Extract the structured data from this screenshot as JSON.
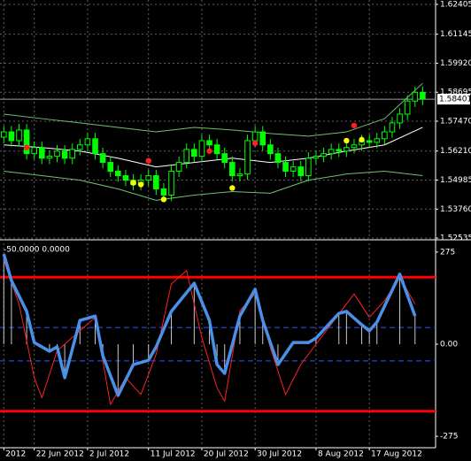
{
  "chart_data": [
    {
      "type": "candlestick",
      "color": "#00ff00",
      "up_fill": "#000000",
      "down_fill": "#00ff00",
      "grid": true,
      "xlim": [
        -0.5,
        56.7
      ],
      "ylim": [
        1.525,
        1.6259
      ],
      "yticks": [
        1.62405,
        1.61145,
        {
          "value": 1.5992,
          "label": "1.59920"
        },
        1.58695,
        {
          "value": 1.5747,
          "label": "1.57470"
        },
        {
          "value": 1.5621,
          "label": "1.56210"
        },
        1.54985,
        {
          "value": 1.5376,
          "label": "1.53760"
        },
        1.52535
      ],
      "xticks": [
        {
          "value": 0,
          "label": "2012"
        },
        {
          "value": 4,
          "label": "22 Jun 2012"
        },
        {
          "value": 11,
          "label": "2 Jul 2012"
        },
        {
          "value": 19,
          "label": "11 Jul 2012"
        },
        {
          "value": 26,
          "label": "20 Jul 2012"
        },
        {
          "value": 33,
          "label": "30 Jul 2012"
        },
        {
          "value": 41,
          "label": "8 Aug 2012"
        },
        {
          "value": 48,
          "label": "17 Aug 2012"
        }
      ],
      "last_price": 1.58401,
      "open": [
        1.568,
        1.5702,
        1.5665,
        1.571,
        1.561,
        1.5636,
        1.5591,
        1.5599,
        1.5621,
        1.5591,
        1.5628,
        1.5647,
        1.5673,
        1.561,
        1.5573,
        1.5536,
        1.5517,
        1.5498,
        1.548,
        1.5498,
        1.5517,
        1.5461,
        1.5435,
        1.5536,
        1.5573,
        1.5628,
        1.5599,
        1.5665,
        1.5647,
        1.561,
        1.5573,
        1.5517,
        1.5524,
        1.5665,
        1.5702,
        1.5647,
        1.561,
        1.5573,
        1.5536,
        1.5554,
        1.5517,
        1.5591,
        1.5599,
        1.561,
        1.5628,
        1.5621,
        1.5636,
        1.5647,
        1.5665,
        1.5658,
        1.5673,
        1.5702,
        1.574,
        1.5777,
        1.5832,
        1.5869
      ],
      "high": [
        1.5727,
        1.5727,
        1.5735,
        1.5735,
        1.5661,
        1.5661,
        1.5624,
        1.5646,
        1.5646,
        1.5653,
        1.5672,
        1.5698,
        1.5698,
        1.5635,
        1.5598,
        1.5561,
        1.5542,
        1.5523,
        1.5523,
        1.5542,
        1.5542,
        1.5486,
        1.5561,
        1.5598,
        1.5653,
        1.5653,
        1.569,
        1.569,
        1.5672,
        1.5635,
        1.5598,
        1.5549,
        1.569,
        1.5727,
        1.5727,
        1.5672,
        1.5635,
        1.5598,
        1.5579,
        1.5579,
        1.5616,
        1.5624,
        1.5635,
        1.5653,
        1.5653,
        1.5661,
        1.5672,
        1.569,
        1.569,
        1.5698,
        1.5727,
        1.5765,
        1.5802,
        1.5857,
        1.5894,
        1.5894
      ],
      "low": [
        1.5655,
        1.564,
        1.564,
        1.5585,
        1.5585,
        1.5566,
        1.5566,
        1.5574,
        1.5566,
        1.5566,
        1.5603,
        1.5622,
        1.5585,
        1.5548,
        1.5511,
        1.5492,
        1.5473,
        1.5455,
        1.5455,
        1.5473,
        1.5436,
        1.541,
        1.541,
        1.5511,
        1.5548,
        1.5574,
        1.5574,
        1.5622,
        1.5585,
        1.5548,
        1.5492,
        1.5492,
        1.5499,
        1.564,
        1.5622,
        1.5585,
        1.5548,
        1.5511,
        1.5511,
        1.5492,
        1.5492,
        1.5566,
        1.5574,
        1.5585,
        1.5596,
        1.5596,
        1.5611,
        1.5622,
        1.5633,
        1.5633,
        1.5648,
        1.5677,
        1.5715,
        1.5752,
        1.5807,
        1.5815
      ],
      "close": [
        1.5702,
        1.5665,
        1.571,
        1.561,
        1.5636,
        1.5591,
        1.5599,
        1.5621,
        1.5591,
        1.5628,
        1.5647,
        1.5673,
        1.561,
        1.5573,
        1.5536,
        1.5517,
        1.5498,
        1.548,
        1.5498,
        1.5517,
        1.5461,
        1.5435,
        1.5536,
        1.5573,
        1.5628,
        1.5599,
        1.5665,
        1.5647,
        1.561,
        1.5573,
        1.5517,
        1.5524,
        1.5665,
        1.5702,
        1.5647,
        1.561,
        1.5573,
        1.5536,
        1.5554,
        1.5517,
        1.5591,
        1.5599,
        1.561,
        1.5628,
        1.5621,
        1.5636,
        1.5647,
        1.5665,
        1.5658,
        1.5673,
        1.5702,
        1.574,
        1.5777,
        1.5832,
        1.5869,
        1.584
      ],
      "lines": [
        {
          "color": "#6fc06f",
          "x": [
            0,
            5,
            10,
            15,
            20,
            25,
            30,
            35,
            40,
            45,
            50,
            55
          ],
          "values": [
            1.5777,
            1.5758,
            1.574,
            1.5721,
            1.5702,
            1.5721,
            1.571,
            1.5695,
            1.5684,
            1.5702,
            1.5758,
            1.5907
          ]
        },
        {
          "color": "#6fc06f",
          "x": [
            0,
            5,
            10,
            15,
            20,
            25,
            30,
            35,
            40,
            45,
            50,
            55
          ],
          "values": [
            1.5536,
            1.5517,
            1.5498,
            1.5461,
            1.5413,
            1.5435,
            1.545,
            1.5443,
            1.5498,
            1.5524,
            1.5536,
            1.5517
          ]
        },
        {
          "color": "#ffffff",
          "x": [
            0,
            5,
            10,
            15,
            20,
            25,
            30,
            35,
            40,
            45,
            50,
            55
          ],
          "values": [
            1.5647,
            1.5636,
            1.5621,
            1.5591,
            1.5554,
            1.5573,
            1.5591,
            1.5573,
            1.5591,
            1.5621,
            1.5647,
            1.5721
          ]
        }
      ],
      "markers": [
        {
          "color": "#ff2020",
          "x": [
            3,
            19,
            27,
            33,
            46
          ],
          "values": [
            1.5636,
            1.558,
            1.5621,
            1.5654,
            1.5729
          ]
        },
        {
          "color": "#ffff00",
          "x": [
            17,
            18,
            21,
            30,
            45,
            47
          ],
          "values": [
            1.5487,
            1.548,
            1.5417,
            1.5465,
            1.5665,
            1.5669
          ]
        }
      ]
    },
    {
      "type": "line",
      "header": "-50.0000 0.0000",
      "xlim": [
        -0.5,
        56.7
      ],
      "ylim": [
        -309,
        309
      ],
      "yticks": [
        275,
        {
          "value": 0,
          "label": "0.00"
        },
        -275
      ],
      "levels": [
        {
          "value": 200,
          "color": "#ff0000"
        },
        {
          "value": -200,
          "color": "#ff0000"
        },
        {
          "value": 50,
          "color": "#3050ff"
        },
        {
          "value": -50,
          "color": "#3050ff"
        }
      ],
      "series": [
        {
          "color": "#ff2020",
          "width": 1,
          "x": [
            0,
            2,
            4,
            5,
            7,
            9,
            12,
            14,
            16,
            18,
            20,
            22,
            24,
            26,
            28,
            29,
            31,
            33,
            35,
            37,
            39,
            41,
            43,
            46,
            48,
            50,
            52,
            54
          ],
          "values": [
            250,
            120,
            -100,
            -160,
            -20,
            20,
            80,
            -180,
            -100,
            -150,
            -30,
            180,
            220,
            20,
            -130,
            -170,
            100,
            150,
            -10,
            -150,
            -60,
            0,
            60,
            150,
            80,
            130,
            200,
            120
          ]
        },
        {
          "color": "#4a90e8",
          "width": 3.5,
          "stems": true,
          "x": [
            0,
            1,
            3,
            4,
            6,
            7,
            8,
            10,
            12,
            13,
            15,
            17,
            19,
            20,
            22,
            25,
            27,
            28,
            29,
            31,
            33,
            34,
            36,
            38,
            40,
            41,
            44,
            45,
            47,
            48,
            49,
            52,
            54
          ],
          "values": [
            269,
            190,
            98,
            5,
            -21,
            -8,
            -100,
            71,
            84,
            -34,
            -153,
            -61,
            -48,
            -8,
            98,
            182,
            71,
            -61,
            -87,
            84,
            164,
            71,
            -61,
            5,
            5,
            18,
            92,
            98,
            58,
            40,
            66,
            209,
            84
          ]
        }
      ]
    }
  ]
}
